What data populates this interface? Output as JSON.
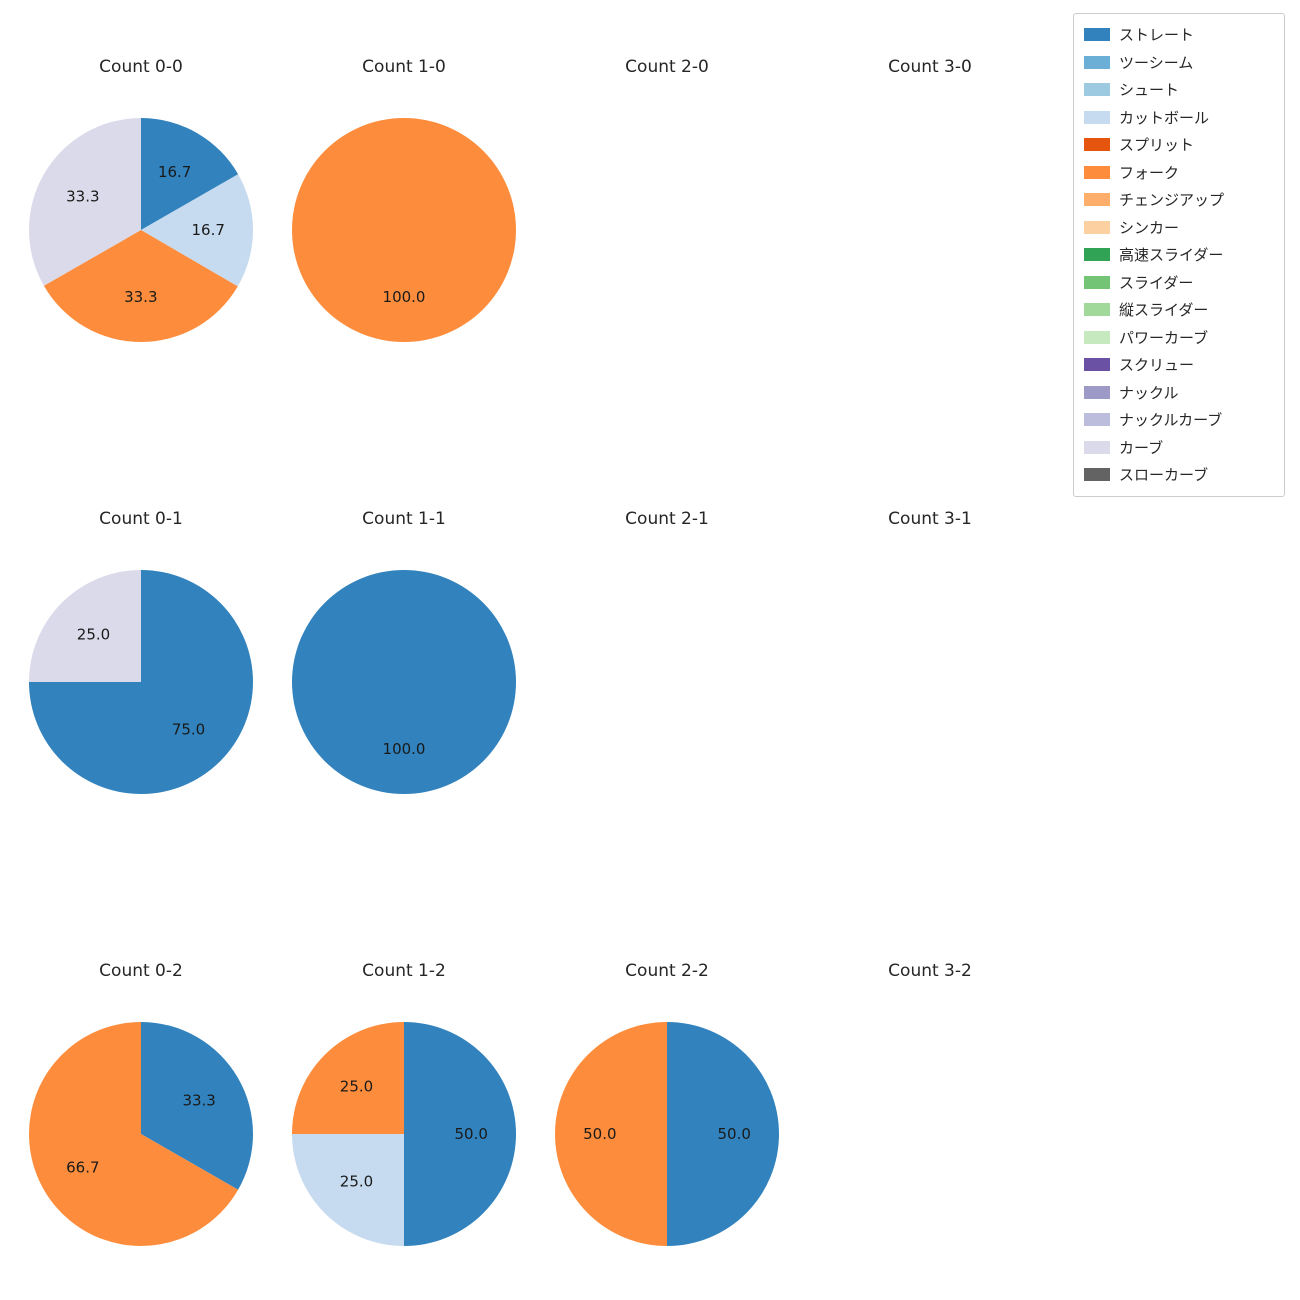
{
  "chart_data": {
    "type": "pie",
    "layout": {
      "rows": 3,
      "cols": 4,
      "legend_position": "upper right",
      "background": "#ffffff"
    },
    "pie_style": {
      "start_angle": 90,
      "direction": "clockwise",
      "pct_distance": 0.6,
      "radius_px": 112
    },
    "legend": {
      "entries": [
        {
          "label": "ストレート",
          "color": "#3182bd"
        },
        {
          "label": "ツーシーム",
          "color": "#6baed6"
        },
        {
          "label": "シュート",
          "color": "#9ecae1"
        },
        {
          "label": "カットボール",
          "color": "#c6dbef"
        },
        {
          "label": "スプリット",
          "color": "#e6550d"
        },
        {
          "label": "フォーク",
          "color": "#fd8d3c"
        },
        {
          "label": "チェンジアップ",
          "color": "#fdae6b"
        },
        {
          "label": "シンカー",
          "color": "#fdd0a2"
        },
        {
          "label": "高速スライダー",
          "color": "#31a354"
        },
        {
          "label": "スライダー",
          "color": "#74c476"
        },
        {
          "label": "縦スライダー",
          "color": "#a1d99b"
        },
        {
          "label": "パワーカーブ",
          "color": "#c7e9c0"
        },
        {
          "label": "スクリュー",
          "color": "#6a51a3"
        },
        {
          "label": "ナックル",
          "color": "#9e9ac8"
        },
        {
          "label": "ナックルカーブ",
          "color": "#bcbddc"
        },
        {
          "label": "カーブ",
          "color": "#dadaeb"
        },
        {
          "label": "スローカーブ",
          "color": "#636363"
        }
      ]
    },
    "subplots": [
      {
        "title": "Count 0-0",
        "slices": [
          {
            "label": "ストレート",
            "value": 16.7
          },
          {
            "label": "カットボール",
            "value": 16.7
          },
          {
            "label": "フォーク",
            "value": 33.3
          },
          {
            "label": "カーブ",
            "value": 33.3
          }
        ]
      },
      {
        "title": "Count 1-0",
        "slices": [
          {
            "label": "フォーク",
            "value": 100.0
          }
        ]
      },
      {
        "title": "Count 2-0",
        "slices": []
      },
      {
        "title": "Count 3-0",
        "slices": []
      },
      {
        "title": "Count 0-1",
        "slices": [
          {
            "label": "ストレート",
            "value": 75.0
          },
          {
            "label": "カーブ",
            "value": 25.0
          }
        ]
      },
      {
        "title": "Count 1-1",
        "slices": [
          {
            "label": "ストレート",
            "value": 100.0
          }
        ]
      },
      {
        "title": "Count 2-1",
        "slices": []
      },
      {
        "title": "Count 3-1",
        "slices": []
      },
      {
        "title": "Count 0-2",
        "slices": [
          {
            "label": "ストレート",
            "value": 33.3
          },
          {
            "label": "フォーク",
            "value": 66.7
          }
        ]
      },
      {
        "title": "Count 1-2",
        "slices": [
          {
            "label": "ストレート",
            "value": 50.0
          },
          {
            "label": "カットボール",
            "value": 25.0
          },
          {
            "label": "フォーク",
            "value": 25.0
          }
        ]
      },
      {
        "title": "Count 2-2",
        "slices": [
          {
            "label": "ストレート",
            "value": 50.0
          },
          {
            "label": "フォーク",
            "value": 50.0
          }
        ]
      },
      {
        "title": "Count 3-2",
        "slices": []
      }
    ]
  }
}
